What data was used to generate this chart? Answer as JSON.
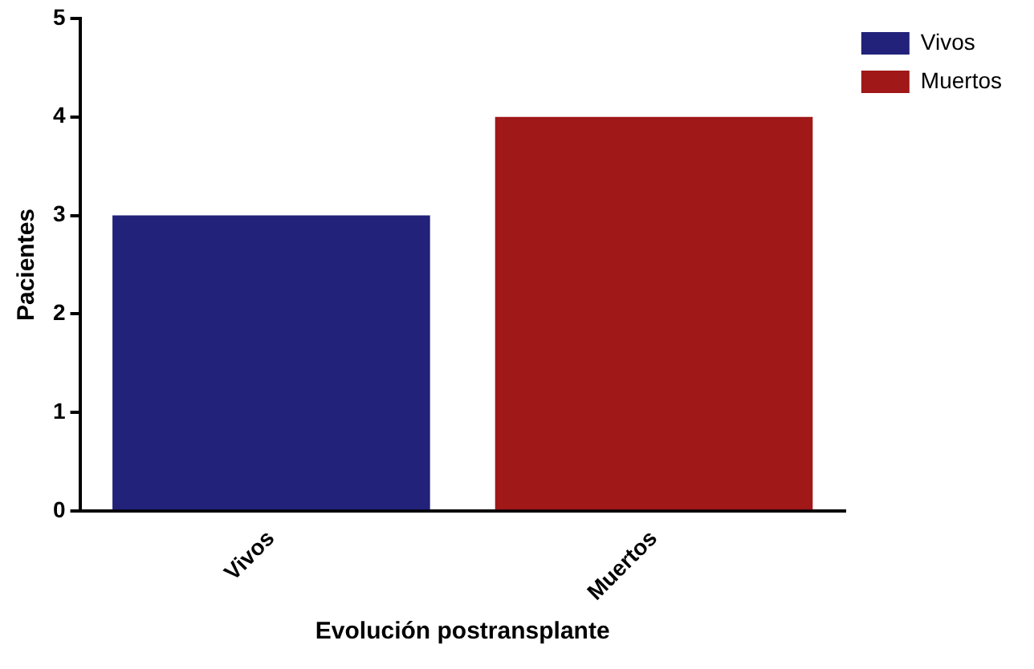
{
  "chart_data": {
    "type": "bar",
    "xlabel": "Evolución postransplante",
    "ylabel": "Pacientes",
    "categories": [
      "Vivos",
      "Muertos"
    ],
    "series": [
      {
        "name": "Vivos",
        "color": "#22227a",
        "values": [
          3,
          null
        ]
      },
      {
        "name": "Muertos",
        "color": "#a01818",
        "values": [
          null,
          4
        ]
      }
    ],
    "ylim": [
      0,
      5
    ],
    "yticks": [
      0,
      1,
      2,
      3,
      4,
      5
    ],
    "grid": false,
    "legend": "top right"
  }
}
